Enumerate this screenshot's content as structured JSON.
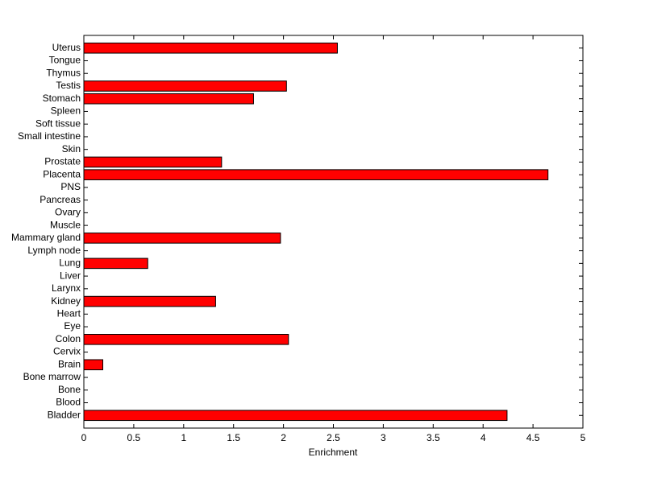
{
  "chart_data": {
    "type": "barh",
    "xlabel": "Enrichment",
    "categories": [
      "Bladder",
      "Blood",
      "Bone",
      "Bone marrow",
      "Brain",
      "Cervix",
      "Colon",
      "Eye",
      "Heart",
      "Kidney",
      "Larynx",
      "Liver",
      "Lung",
      "Lymph node",
      "Mammary gland",
      "Muscle",
      "Ovary",
      "Pancreas",
      "PNS",
      "Placenta",
      "Prostate",
      "Skin",
      "Small intestine",
      "Soft tissue",
      "Spleen",
      "Stomach",
      "Testis",
      "Thymus",
      "Tongue",
      "Uterus"
    ],
    "values": [
      4.24,
      0,
      0,
      0,
      0.19,
      0,
      2.05,
      0,
      0,
      1.32,
      0,
      0,
      0.64,
      0,
      1.97,
      0,
      0,
      0,
      0,
      4.65,
      1.38,
      0,
      0,
      0,
      0,
      1.7,
      2.03,
      0,
      0,
      2.54
    ],
    "color": "#ff0000",
    "xlim": [
      0,
      5
    ],
    "xticks": [
      0,
      0.5,
      1,
      1.5,
      2,
      2.5,
      3,
      3.5,
      4,
      4.5,
      5
    ]
  }
}
